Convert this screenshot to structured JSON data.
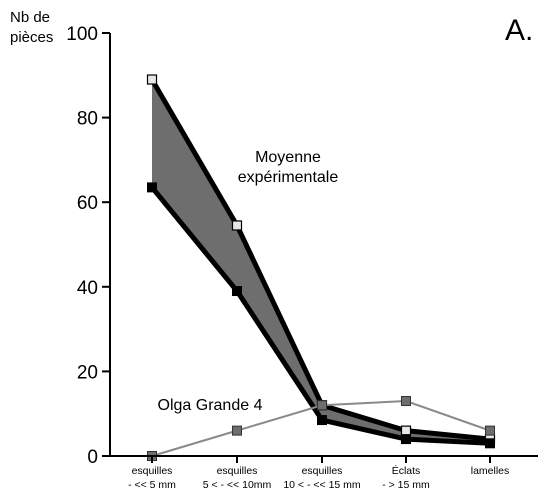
{
  "chart_data": {
    "type": "line",
    "panel_label": "A.",
    "ylabel_line1": "Nb de",
    "ylabel_line2": "pièces",
    "ylim": [
      0,
      100
    ],
    "yticks": [
      0,
      20,
      40,
      60,
      80,
      100
    ],
    "categories": [
      {
        "line1": "esquilles",
        "line2": "- << 5 mm"
      },
      {
        "line1": "esquilles",
        "line2": "5 < - << 10mm"
      },
      {
        "line1": "esquilles",
        "line2": "10 < - << 15 mm"
      },
      {
        "line1": "Éclats",
        "line2": "- > 15 mm"
      },
      {
        "line1": "lamelles",
        "line2": ""
      }
    ],
    "band_label_line1": "Moyenne",
    "band_label_line2": "expérimentale",
    "band": {
      "upper": [
        89,
        54.5,
        12,
        6,
        4
      ],
      "lower": [
        63.5,
        39,
        8.5,
        4,
        3
      ]
    },
    "series": [
      {
        "name": "Olga Grande 4",
        "values": [
          0,
          6,
          12,
          13,
          6
        ]
      }
    ],
    "colors": {
      "band_fill": "#6e6e6e",
      "band_edge": "#000000",
      "upper_marker": "#e8e8e8",
      "lower_marker": "#000000",
      "series_line": "#8a8a8a",
      "series_marker": "#6e6e6e"
    }
  }
}
